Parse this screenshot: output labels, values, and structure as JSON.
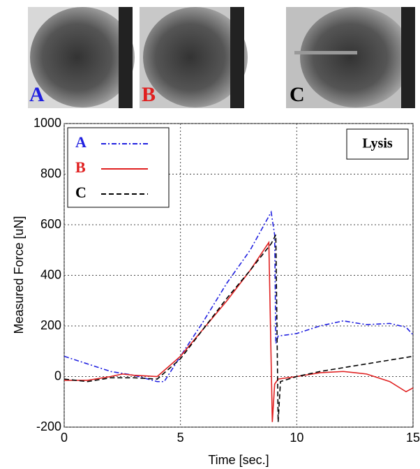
{
  "panels": [
    {
      "label": "A",
      "color": "#2020e0"
    },
    {
      "label": "B",
      "color": "#e02020"
    },
    {
      "label": "C",
      "color": "#000000"
    }
  ],
  "chart_data": {
    "type": "line",
    "annotation": "Lysis",
    "x_label": "Time [sec.]",
    "y_label": "Measured Force [uN]",
    "xlim": [
      0,
      15
    ],
    "xticks": [
      0,
      5,
      10,
      15
    ],
    "ylim": [
      -200,
      1000
    ],
    "yticks": [
      -200,
      0,
      200,
      400,
      600,
      800,
      1000
    ],
    "grid": true,
    "legend": "upper left",
    "series": [
      {
        "name": "A",
        "color": "#2020e0",
        "linestyle": "dashdot",
        "x": [
          0,
          1,
          2,
          3,
          4,
          4.3,
          5,
          6,
          7,
          8,
          8.9,
          9.05,
          9.1,
          9.2,
          10,
          11,
          12,
          13,
          14,
          14.7,
          15
        ],
        "values": [
          80,
          50,
          20,
          5,
          -20,
          -20,
          80,
          220,
          370,
          500,
          650,
          560,
          130,
          160,
          170,
          200,
          220,
          205,
          210,
          195,
          165
        ]
      },
      {
        "name": "B",
        "color": "#e02020",
        "linestyle": "solid",
        "x": [
          0,
          1,
          2,
          2.5,
          3,
          4,
          5,
          6,
          7,
          8,
          8.8,
          8.95,
          9.05,
          9.2,
          10,
          11,
          12,
          13,
          14,
          14.7,
          15
        ],
        "values": [
          -15,
          -15,
          0,
          10,
          5,
          0,
          80,
          190,
          300,
          420,
          530,
          -180,
          -30,
          -10,
          0,
          15,
          20,
          10,
          -20,
          -60,
          -45
        ]
      },
      {
        "name": "C",
        "color": "#000000",
        "linestyle": "dashed",
        "x": [
          0,
          1,
          2,
          3,
          4,
          5,
          6,
          7,
          8,
          8.9,
          9.1,
          9.2,
          9.3,
          10,
          11,
          12,
          13,
          14,
          15
        ],
        "values": [
          -10,
          -20,
          -5,
          -5,
          -10,
          70,
          190,
          310,
          420,
          525,
          560,
          -180,
          -20,
          0,
          20,
          35,
          50,
          65,
          80
        ]
      }
    ]
  }
}
